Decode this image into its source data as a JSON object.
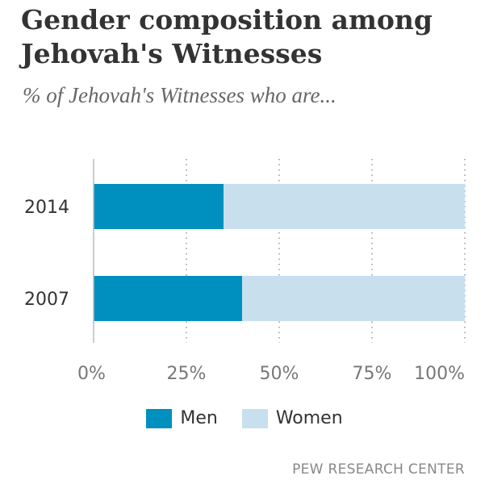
{
  "header": {
    "title": "Gender composition among Jehovah's Witnesses",
    "subtitle": "% of Jehovah's Witnesses who are..."
  },
  "chart_data": {
    "type": "bar",
    "orientation": "horizontal",
    "stacked": true,
    "title": "Gender composition among Jehovah's Witnesses",
    "subtitle": "% of Jehovah's Witnesses who are...",
    "categories": [
      "2014",
      "2007"
    ],
    "series": [
      {
        "name": "Men",
        "values": [
          35,
          40
        ],
        "color": "#0090bf"
      },
      {
        "name": "Women",
        "values": [
          65,
          60
        ],
        "color": "#c8dfee"
      }
    ],
    "xlim": [
      0,
      100
    ],
    "xticks": [
      "0%",
      "25%",
      "50%",
      "75%",
      "100%"
    ],
    "grid": "vertical-dotted",
    "legend": "bottom-center"
  },
  "footer": {
    "source": "PEW RESEARCH CENTER"
  }
}
